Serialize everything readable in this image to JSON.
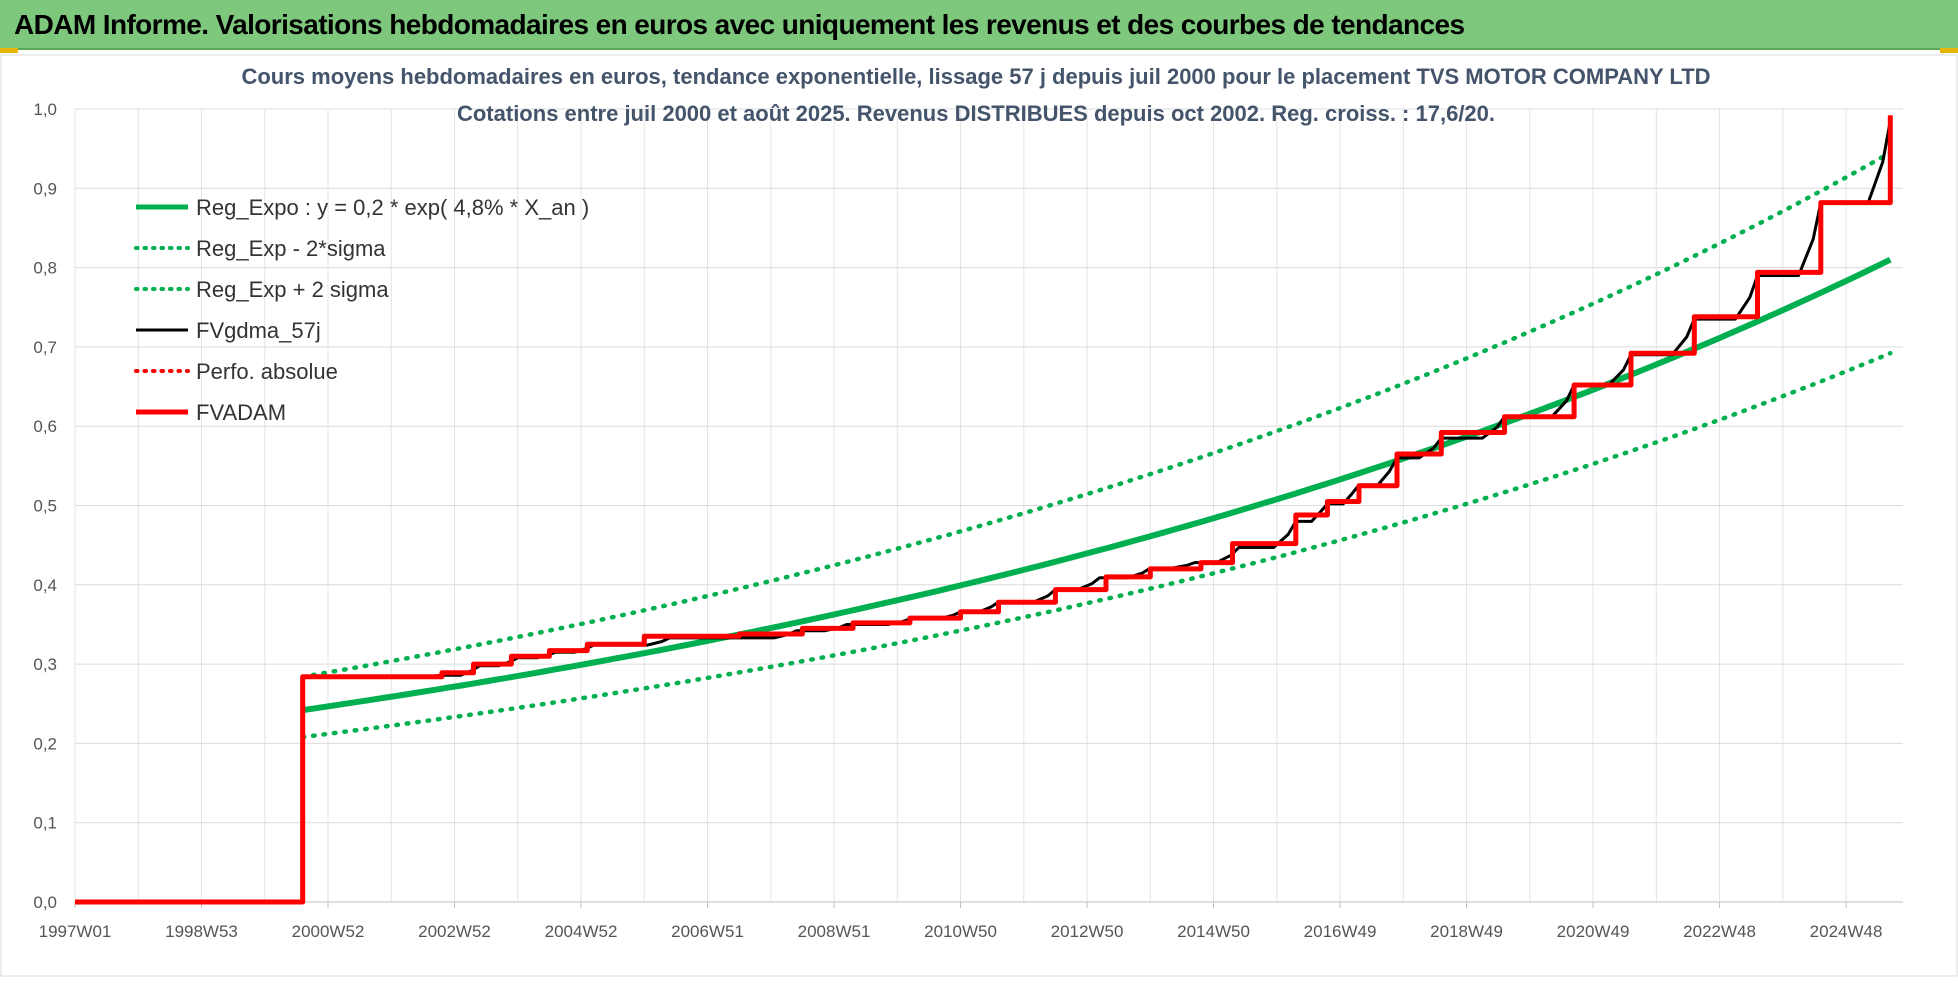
{
  "header": {
    "title": "ADAM Informe. Valorisations hebdomadaires en euros avec uniquement les revenus et des courbes de tendances"
  },
  "chart_data": {
    "type": "line",
    "title": "Cours moyens hebdomadaires en euros, tendance exponentielle, lissage 57 j depuis juil 2000 pour le placement TVS MOTOR COMPANY LTD",
    "subtitle": "Cotations entre juil 2000 et août 2025. Revenus DISTRIBUES depuis oct 2002. Reg. croiss. : 17,6/20.",
    "x_axis": {
      "min": 1997.0,
      "max": 2025.9,
      "ticks": [
        {
          "x": 1997.0,
          "label": "1997W01"
        },
        {
          "x": 1999.0,
          "label": "1998W53"
        },
        {
          "x": 2001.0,
          "label": "2000W52"
        },
        {
          "x": 2003.0,
          "label": "2002W52"
        },
        {
          "x": 2005.0,
          "label": "2004W52"
        },
        {
          "x": 2007.0,
          "label": "2006W51"
        },
        {
          "x": 2009.0,
          "label": "2008W51"
        },
        {
          "x": 2011.0,
          "label": "2010W50"
        },
        {
          "x": 2013.0,
          "label": "2012W50"
        },
        {
          "x": 2015.0,
          "label": "2014W50"
        },
        {
          "x": 2017.0,
          "label": "2016W49"
        },
        {
          "x": 2019.0,
          "label": "2018W49"
        },
        {
          "x": 2021.0,
          "label": "2020W49"
        },
        {
          "x": 2023.0,
          "label": "2022W48"
        },
        {
          "x": 2025.0,
          "label": "2024W48"
        }
      ]
    },
    "y_axis": {
      "min": 0,
      "max": 1.0,
      "ticks": [
        {
          "y": 0.0,
          "label": "0,0"
        },
        {
          "y": 0.1,
          "label": "0,1"
        },
        {
          "y": 0.2,
          "label": "0,2"
        },
        {
          "y": 0.3,
          "label": "0,3"
        },
        {
          "y": 0.4,
          "label": "0,4"
        },
        {
          "y": 0.5,
          "label": "0,5"
        },
        {
          "y": 0.6,
          "label": "0,6"
        },
        {
          "y": 0.7,
          "label": "0,7"
        },
        {
          "y": 0.8,
          "label": "0,8"
        },
        {
          "y": 0.9,
          "label": "0,9"
        },
        {
          "y": 1.0,
          "label": "1,0"
        }
      ]
    },
    "grid": true,
    "legend_position": "top-left",
    "series": [
      {
        "name": "Reg_Expo : y = 0,2 * exp( 4,8% *  X_an )",
        "style": "solid-thick",
        "color": "#00b050",
        "x": [
          2000.6,
          2025.7
        ],
        "y": [
          0.242,
          0.81
        ]
      },
      {
        "name": "Reg_Exp - 2*sigma",
        "style": "dotted",
        "color": "#00b050",
        "x": [
          2000.6,
          2025.7
        ],
        "y": [
          0.208,
          0.692
        ]
      },
      {
        "name": "Reg_Exp + 2 sigma",
        "style": "dotted",
        "color": "#00b050",
        "x": [
          2000.6,
          2025.7
        ],
        "y": [
          0.284,
          0.945
        ]
      },
      {
        "name": "FVgdma_57j",
        "style": "solid",
        "color": "#000000",
        "x": [
          1997.0,
          2000.6,
          2000.6,
          2002.8,
          2003.4,
          2004.0,
          2004.6,
          2005.2,
          2006.4,
          2008.4,
          2009.2,
          2010.2,
          2011.0,
          2011.6,
          2012.5,
          2013.2,
          2014.0,
          2014.7,
          2015.4,
          2016.3,
          2016.8,
          2017.3,
          2017.9,
          2018.6,
          2019.6,
          2020.7,
          2021.6,
          2022.6,
          2023.6,
          2024.6,
          2025.7
        ],
        "y": [
          0.0,
          0.0,
          0.284,
          0.286,
          0.298,
          0.308,
          0.315,
          0.324,
          0.333,
          0.342,
          0.35,
          0.357,
          0.366,
          0.378,
          0.394,
          0.409,
          0.421,
          0.428,
          0.447,
          0.48,
          0.502,
          0.526,
          0.56,
          0.585,
          0.612,
          0.652,
          0.69,
          0.735,
          0.79,
          0.882,
          0.985
        ]
      },
      {
        "name": "Perfo. absolue",
        "style": "dotted",
        "color": "#ff0000",
        "x": [
          2000.6,
          2025.7
        ],
        "y": [
          0.284,
          0.99
        ]
      },
      {
        "name": "FVADAM",
        "style": "step-thick",
        "color": "#ff0000",
        "x": [
          1997.0,
          2000.6,
          2000.6,
          2002.8,
          2003.3,
          2003.9,
          2004.5,
          2005.1,
          2006.0,
          2007.5,
          2008.5,
          2009.3,
          2010.2,
          2011.0,
          2011.6,
          2012.5,
          2013.3,
          2014.0,
          2014.8,
          2015.3,
          2016.3,
          2016.8,
          2017.3,
          2017.9,
          2018.6,
          2019.6,
          2020.7,
          2021.6,
          2022.6,
          2023.6,
          2024.6,
          2025.7
        ],
        "y": [
          0.0,
          0.0,
          0.284,
          0.289,
          0.3,
          0.31,
          0.317,
          0.325,
          0.335,
          0.338,
          0.345,
          0.352,
          0.358,
          0.366,
          0.378,
          0.394,
          0.41,
          0.42,
          0.428,
          0.452,
          0.488,
          0.505,
          0.525,
          0.565,
          0.592,
          0.612,
          0.652,
          0.692,
          0.738,
          0.794,
          0.882,
          0.992
        ]
      }
    ]
  }
}
